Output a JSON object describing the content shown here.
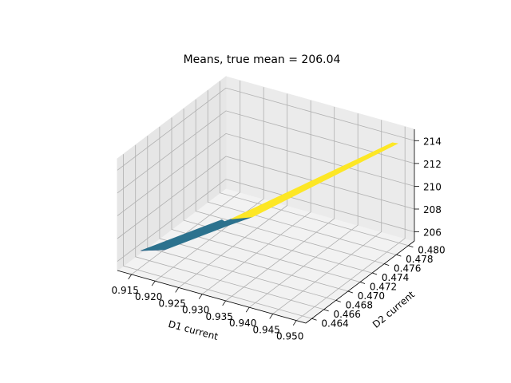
{
  "chart_data": {
    "type": "surface3d",
    "title": "Means, true mean = 206.04",
    "xlabel": "D1 current",
    "ylabel": "D2 current",
    "zlabel": "",
    "x_ticks": [
      "0.915",
      "0.920",
      "0.925",
      "0.930",
      "0.935",
      "0.940",
      "0.945",
      "0.950"
    ],
    "y_ticks": [
      "0.464",
      "0.466",
      "0.468",
      "0.470",
      "0.472",
      "0.474",
      "0.476",
      "0.478",
      "0.480"
    ],
    "z_ticks": [
      "206",
      "208",
      "210",
      "212",
      "214"
    ],
    "xlim": [
      0.912,
      0.952
    ],
    "ylim": [
      0.463,
      0.481
    ],
    "zlim": [
      205.2,
      215.0
    ],
    "colormap": "viridis",
    "surface_patches": [
      {
        "color": "#440154",
        "points": [
          [
            0.9125,
            0.4665,
            205.6
          ],
          [
            0.916,
            0.4685,
            206.0
          ],
          [
            0.917,
            0.467,
            206.0
          ]
        ]
      },
      {
        "color": "#2c728e",
        "points": [
          [
            0.9125,
            0.4665,
            205.6
          ],
          [
            0.917,
            0.467,
            206.0
          ],
          [
            0.925,
            0.4715,
            207.3
          ],
          [
            0.922,
            0.4725,
            207.0
          ]
        ]
      },
      {
        "color": "#2c728e",
        "points": [
          [
            0.92,
            0.4705,
            206.6
          ],
          [
            0.925,
            0.4715,
            207.3
          ],
          [
            0.9285,
            0.4725,
            208.0
          ],
          [
            0.924,
            0.4725,
            207.3
          ]
        ]
      },
      {
        "color": "#fde725",
        "points": [
          [
            0.924,
            0.4725,
            207.3
          ],
          [
            0.9285,
            0.4725,
            208.0
          ],
          [
            0.95,
            0.4798,
            214.0
          ],
          [
            0.949,
            0.4797,
            214.0
          ]
        ]
      }
    ]
  }
}
